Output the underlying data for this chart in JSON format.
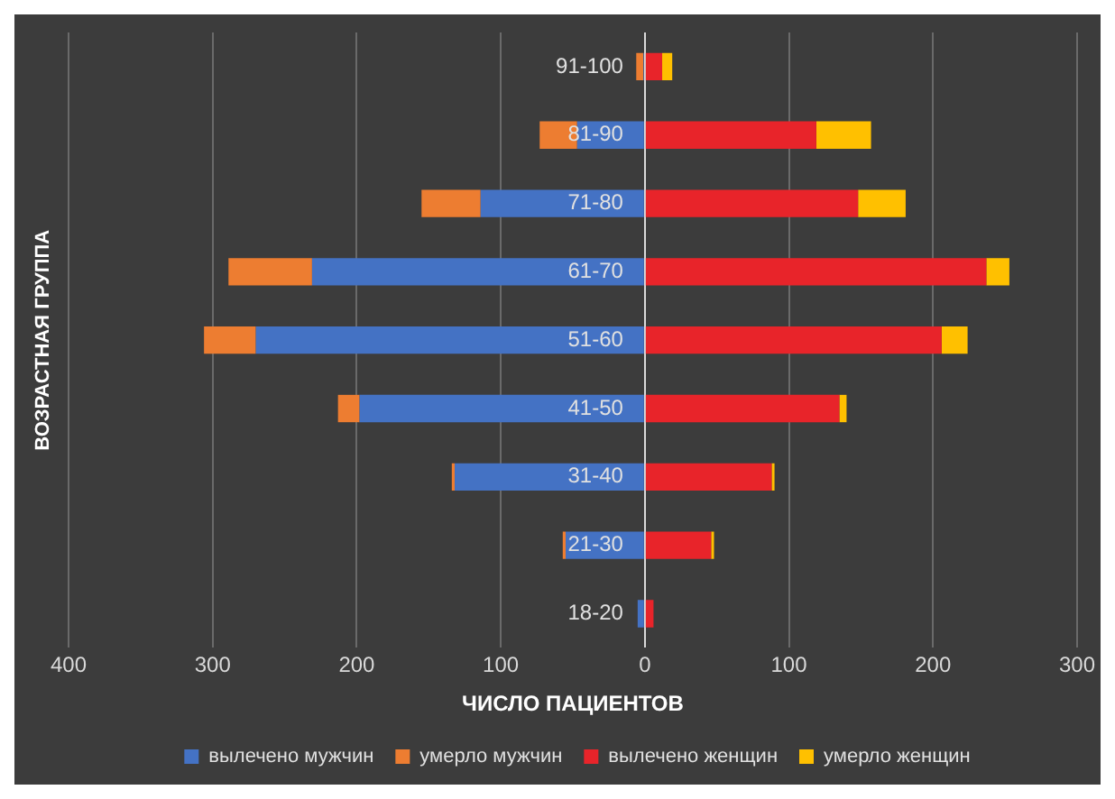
{
  "chart_data": {
    "type": "bar",
    "orientation": "horizontal",
    "stacked": true,
    "xlabel": "ЧИСЛО ПАЦИЕНТОВ",
    "ylabel": "ВОЗРАСТНАЯ ГРУППА",
    "categories": [
      "91-100",
      "81-90",
      "71-80",
      "61-70",
      "51-60",
      "41-50",
      "31-40",
      "21-30",
      "18-20"
    ],
    "series": [
      {
        "name": "вылечено мужчин",
        "color": "#4472c4",
        "values": [
          -1,
          -47,
          -114,
          -231,
          -270,
          -198,
          -132,
          -55,
          -5
        ]
      },
      {
        "name": "умерло мужчин",
        "color": "#ed7d31",
        "values": [
          -5,
          -26,
          -41,
          -58,
          -36,
          -15,
          -2,
          -2,
          0
        ]
      },
      {
        "name": "вылечено женщин",
        "color": "#e8242a",
        "values": [
          12,
          119,
          148,
          237,
          206,
          135,
          88,
          46,
          6
        ]
      },
      {
        "name": "умерло женщин",
        "color": "#ffc000",
        "values": [
          7,
          38,
          33,
          16,
          18,
          5,
          2,
          2,
          0
        ]
      }
    ],
    "xlim": [
      -400,
      300
    ],
    "xticks": [
      {
        "value": -400,
        "label": "400"
      },
      {
        "value": -300,
        "label": "300"
      },
      {
        "value": -200,
        "label": "200"
      },
      {
        "value": -100,
        "label": "100"
      },
      0,
      100,
      200,
      300
    ],
    "grid": "x",
    "legend": "bottom"
  }
}
